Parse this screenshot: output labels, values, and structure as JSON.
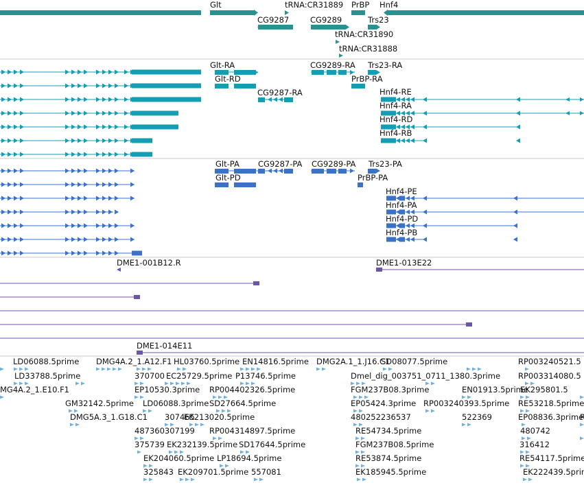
{
  "colors": {
    "gene": "#2a9191",
    "transcript": "#149eb5",
    "protein": "#3a72c8",
    "clone": "#6a55a6",
    "est": "#6fb0dc",
    "divider": "#c8c8c8"
  },
  "genes": [
    "Glt",
    "tRNA:CR31889",
    "PrBP",
    "Hnf4",
    "CG9287",
    "CG9289",
    "Trs23",
    "tRNA:CR31890",
    "tRNA:CR31888"
  ],
  "transcripts": [
    "Glt-RA",
    "Glt-RD",
    "CG9289-RA",
    "Trs23-RA",
    "PrBP-RA",
    "CG9287-RA",
    "Hnf4-RE",
    "Hnf4-RA",
    "Hnf4-RD",
    "Hnf4-RB"
  ],
  "proteins": [
    "Glt-PA",
    "Glt-PD",
    "CG9287-PA",
    "CG9289-PA",
    "Trs23-PA",
    "PrBP-PA",
    "Hnf4-PE",
    "Hnf4-PA",
    "Hnf4-PD",
    "Hnf4-PB"
  ],
  "clones": [
    "DME1-001B12.R",
    "DME1-013E22",
    "DME1-014E11"
  ],
  "ests": [
    "LD06088.5prime",
    "DMG4A.2_1.A12.F1",
    "HL03760.5prime",
    "EN14816.5prime",
    "DMG2A.1_1.J16.C1",
    "SD08077.5prime",
    "RP003240521.5",
    "LD33788.5prime",
    "370700",
    "EC25729.5prime",
    "P13746.5prime",
    "Dmel_dig_003751_0711_1380.3prime",
    "RP003314080.5",
    "MG4A.2_1.E10.F1",
    "EP10530.3prime",
    "RP004402326.5prime",
    "FGM237B08.3prime",
    "EN01913.5prime",
    "EK295801.5",
    "GM32142.5prime",
    "LD06088.3prime",
    "SD27664.5prime",
    "EP05424.3prime",
    "RP003240393.5prime",
    "RE53218.5prime",
    "DMG5A.3_1.G18.C1",
    "307465",
    "EK213020.5prime",
    "480252236537",
    "522369",
    "EP08836.3prime",
    "487360307199",
    "RP004314897.5prime",
    "480742",
    "R",
    "RE54734.5prime",
    "375739",
    "EK232139.5prime",
    "SD17644.5prime",
    "FGM237B08.5prime",
    "316412",
    "EK204060.5prime",
    "LP18694.5prime",
    "RE53874.5prime",
    "RE54117.5prime",
    "325843",
    "EK209701.5prime",
    "557081",
    "EK185945.5prime",
    "EK222439.5prime"
  ]
}
